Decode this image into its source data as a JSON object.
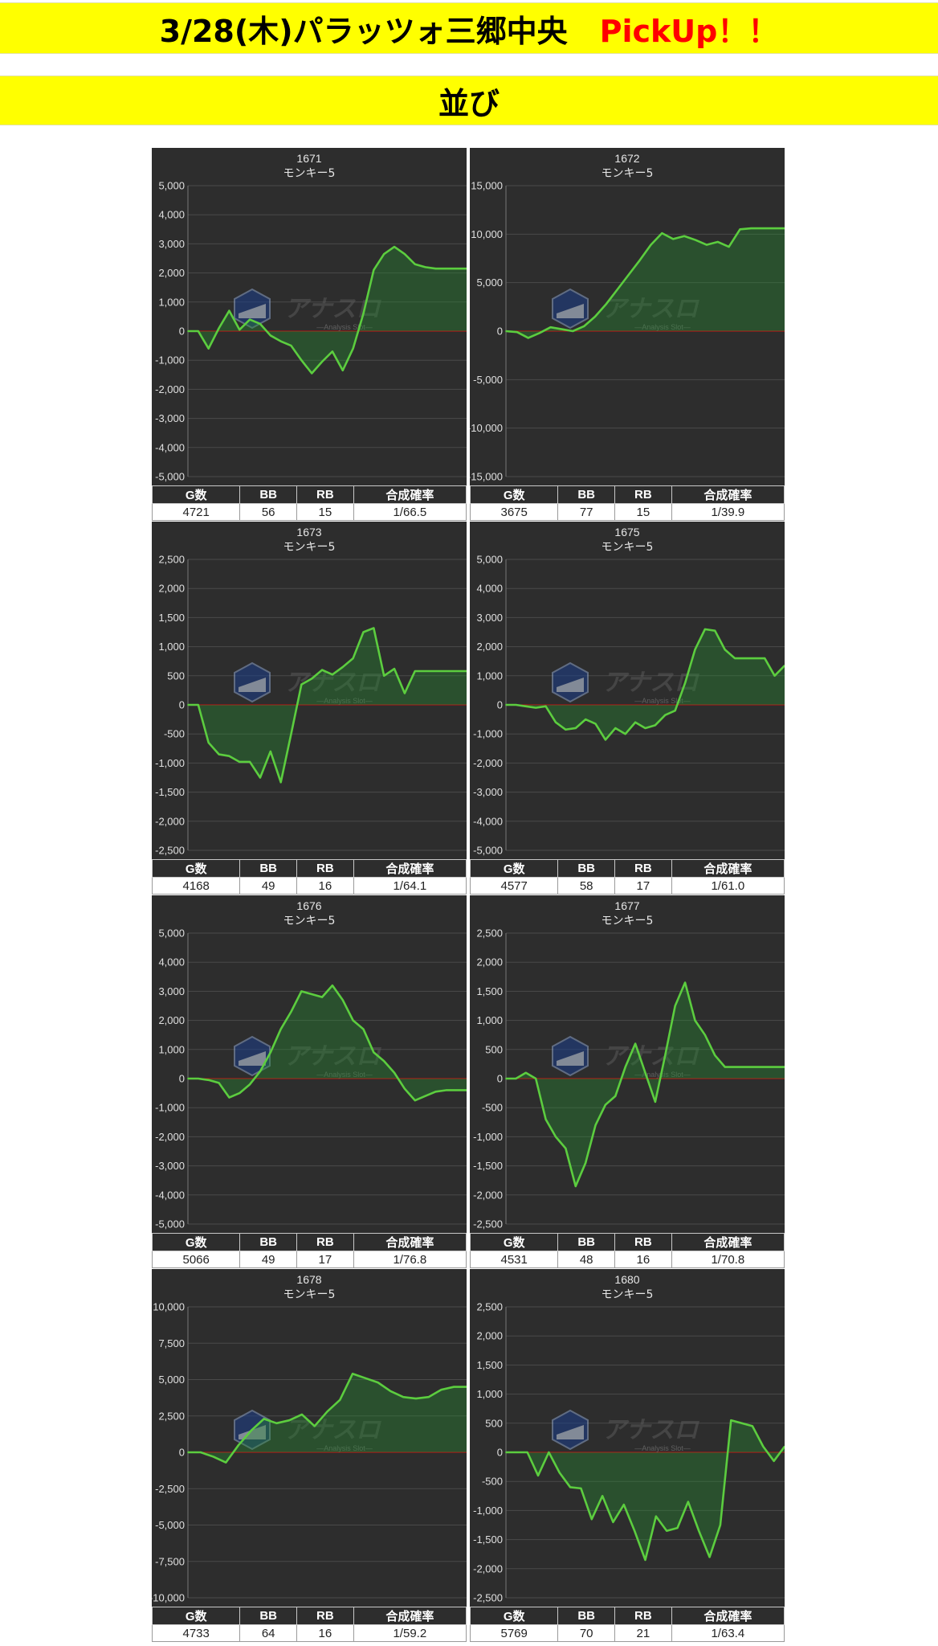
{
  "header": {
    "title": "3/28(木)パラッツォ三郷中央",
    "pickup": "PickUp！！",
    "subtitle": "並び"
  },
  "colors": {
    "banner": "#ffff00",
    "pickup": "#ff0000",
    "chart_bg": "#2d2d2d",
    "line": "#5ccd3f",
    "zero_line": "#cc1111"
  },
  "table_headers": [
    "G数",
    "BB",
    "RB",
    "合成確率"
  ],
  "watermark": {
    "brand": "アナスロ",
    "tagline": "—Analysis Slot—"
  },
  "chart_data": [
    {
      "type": "area",
      "title": "1671",
      "subtitle": "モンキー5",
      "ylim": [
        -5000,
        5000
      ],
      "yticks": [
        5000,
        4000,
        3000,
        2000,
        1000,
        0,
        -1000,
        -2000,
        -3000,
        -4000,
        -5000
      ],
      "grid": true,
      "values": [
        0,
        0,
        -600,
        100,
        700,
        50,
        400,
        250,
        -150,
        -350,
        -500,
        -1000,
        -1450,
        -1050,
        -700,
        -1350,
        -600,
        600,
        2100,
        2650,
        2900,
        2650,
        2300,
        2200,
        2150,
        2150,
        2150,
        2150
      ],
      "stats": {
        "games": "4721",
        "bb": "56",
        "rb": "15",
        "prob": "1/66.5"
      }
    },
    {
      "type": "area",
      "title": "1672",
      "subtitle": "モンキー5",
      "ylim": [
        -15000,
        15000
      ],
      "yticks": [
        15000,
        10000,
        5000,
        0,
        -5000,
        -10000,
        -15000
      ],
      "grid": true,
      "values": [
        0,
        -100,
        -700,
        -200,
        400,
        200,
        0,
        500,
        1500,
        2800,
        4300,
        5800,
        7300,
        8900,
        10100,
        9500,
        9800,
        9400,
        8900,
        9200,
        8700,
        10500,
        10600,
        10600,
        10600,
        10600
      ],
      "stats": {
        "games": "3675",
        "bb": "77",
        "rb": "15",
        "prob": "1/39.9"
      }
    },
    {
      "type": "area",
      "title": "1673",
      "subtitle": "モンキー5",
      "ylim": [
        -2500,
        2500
      ],
      "yticks": [
        2500,
        2000,
        1500,
        1000,
        500,
        0,
        -500,
        -1000,
        -1500,
        -2000,
        -2500
      ],
      "grid": true,
      "values": [
        0,
        0,
        -650,
        -850,
        -880,
        -980,
        -980,
        -1250,
        -800,
        -1330,
        -500,
        350,
        450,
        600,
        520,
        650,
        800,
        1250,
        1320,
        500,
        620,
        200,
        580,
        580,
        580,
        580,
        580,
        580
      ],
      "stats": {
        "games": "4168",
        "bb": "49",
        "rb": "16",
        "prob": "1/64.1"
      }
    },
    {
      "type": "area",
      "title": "1675",
      "subtitle": "モンキー5",
      "ylim": [
        -5000,
        5000
      ],
      "yticks": [
        5000,
        4000,
        3000,
        2000,
        1000,
        0,
        -1000,
        -2000,
        -3000,
        -4000,
        -5000
      ],
      "grid": true,
      "values": [
        0,
        0,
        -50,
        -100,
        -50,
        -600,
        -850,
        -800,
        -500,
        -650,
        -1200,
        -800,
        -1000,
        -600,
        -800,
        -700,
        -350,
        -200,
        750,
        1900,
        2600,
        2550,
        1900,
        1600,
        1600,
        1600,
        1600,
        1000,
        1350
      ],
      "stats": {
        "games": "4577",
        "bb": "58",
        "rb": "17",
        "prob": "1/61.0"
      }
    },
    {
      "type": "area",
      "title": "1676",
      "subtitle": "モンキー5",
      "ylim": [
        -5000,
        5000
      ],
      "yticks": [
        5000,
        4000,
        3000,
        2000,
        1000,
        0,
        -1000,
        -2000,
        -3000,
        -4000,
        -5000
      ],
      "grid": true,
      "values": [
        0,
        0,
        -50,
        -150,
        -650,
        -500,
        -200,
        250,
        900,
        1700,
        2300,
        3000,
        2900,
        2800,
        3200,
        2700,
        2000,
        1700,
        900,
        600,
        200,
        -350,
        -750,
        -600,
        -450,
        -400,
        -400,
        -400
      ],
      "stats": {
        "games": "5066",
        "bb": "49",
        "rb": "17",
        "prob": "1/76.8"
      }
    },
    {
      "type": "area",
      "title": "1677",
      "subtitle": "モンキー5",
      "ylim": [
        -2500,
        2500
      ],
      "yticks": [
        2500,
        2000,
        1500,
        1000,
        500,
        0,
        -500,
        -1000,
        -1500,
        -2000,
        -2500
      ],
      "grid": true,
      "values": [
        0,
        0,
        100,
        0,
        -700,
        -1000,
        -1200,
        -1850,
        -1450,
        -800,
        -450,
        -300,
        200,
        600,
        100,
        -400,
        400,
        1250,
        1650,
        1000,
        750,
        400,
        200,
        200,
        200,
        200,
        200,
        200,
        200
      ],
      "stats": {
        "games": "4531",
        "bb": "48",
        "rb": "16",
        "prob": "1/70.8"
      }
    },
    {
      "type": "area",
      "title": "1678",
      "subtitle": "モンキー5",
      "ylim": [
        -10000,
        10000
      ],
      "yticks": [
        10000,
        7500,
        5000,
        2500,
        0,
        -2500,
        -5000,
        -7500,
        -10000
      ],
      "grid": true,
      "values": [
        0,
        0,
        -300,
        -700,
        500,
        1500,
        2300,
        2000,
        2200,
        2600,
        1800,
        2800,
        3600,
        5400,
        5100,
        4800,
        4200,
        3800,
        3700,
        3800,
        4300,
        4500,
        4500
      ],
      "stats": {
        "games": "4733",
        "bb": "64",
        "rb": "16",
        "prob": "1/59.2"
      }
    },
    {
      "type": "area",
      "title": "1680",
      "subtitle": "モンキー5",
      "ylim": [
        -2500,
        2500
      ],
      "yticks": [
        2500,
        2000,
        1500,
        1000,
        500,
        0,
        -500,
        -1000,
        -1500,
        -2000,
        -2500
      ],
      "grid": true,
      "values": [
        0,
        0,
        0,
        -400,
        0,
        -350,
        -600,
        -620,
        -1150,
        -750,
        -1200,
        -900,
        -1350,
        -1850,
        -1100,
        -1350,
        -1300,
        -850,
        -1350,
        -1800,
        -1250,
        550,
        500,
        450,
        100,
        -150,
        100
      ],
      "stats": {
        "games": "5769",
        "bb": "70",
        "rb": "21",
        "prob": "1/63.4"
      }
    }
  ]
}
